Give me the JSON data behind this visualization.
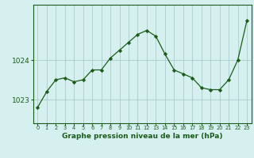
{
  "hours": [
    0,
    1,
    2,
    3,
    4,
    5,
    6,
    7,
    8,
    9,
    10,
    11,
    12,
    13,
    14,
    15,
    16,
    17,
    18,
    19,
    20,
    21,
    22,
    23
  ],
  "pressure": [
    1022.8,
    1023.2,
    1023.5,
    1023.55,
    1023.45,
    1023.5,
    1023.75,
    1023.75,
    1024.05,
    1024.25,
    1024.45,
    1024.65,
    1024.75,
    1024.6,
    1024.15,
    1023.75,
    1023.65,
    1023.55,
    1023.3,
    1023.25,
    1023.25,
    1023.5,
    1024.0,
    1025.0
  ],
  "line_color": "#1a5c1a",
  "marker_color": "#1a5c1a",
  "bg_color": "#d6f0f0",
  "grid_color": "#aacccc",
  "xlabel": "Graphe pression niveau de la mer (hPa)",
  "xlabel_color": "#1a5c1a",
  "tick_color": "#1a5c1a",
  "ylim_min": 1022.4,
  "ylim_max": 1025.4,
  "yticks": [
    1023,
    1024
  ],
  "xlim_min": -0.5,
  "xlim_max": 23.5
}
